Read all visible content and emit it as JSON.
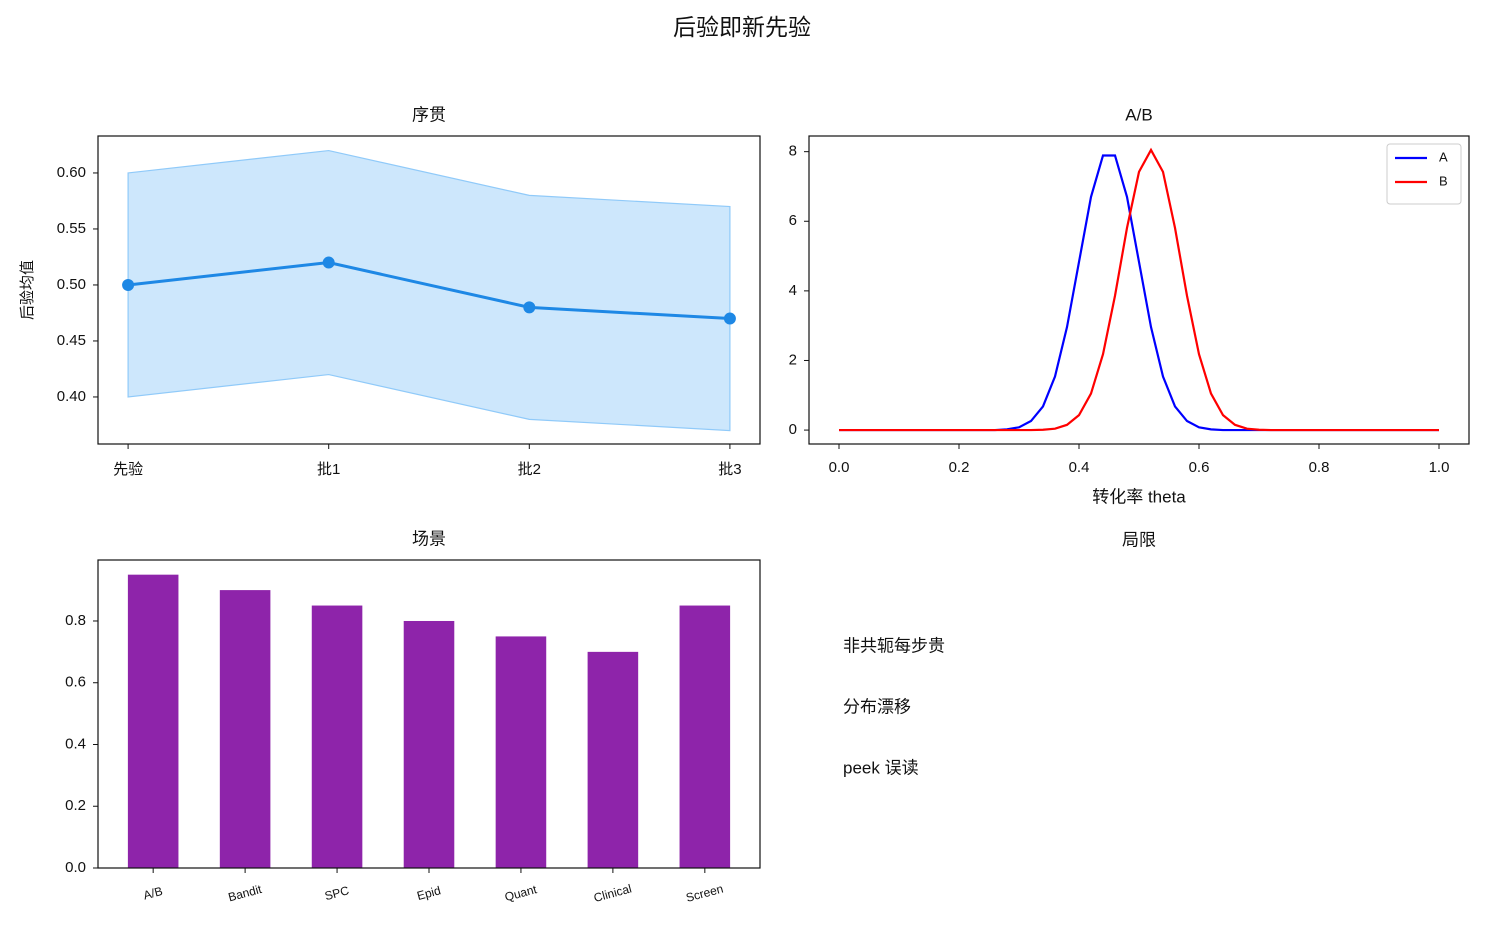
{
  "title": "后验即新先验",
  "chart_data": [
    {
      "type": "line",
      "title": "序贯",
      "ylabel": "后验均值",
      "categories": [
        "先验",
        "批1",
        "批2",
        "批3"
      ],
      "values": [
        0.5,
        0.52,
        0.48,
        0.47
      ],
      "lower": [
        0.4,
        0.42,
        0.38,
        0.37
      ],
      "upper": [
        0.6,
        0.62,
        0.58,
        0.57
      ],
      "color": "#1e88e5",
      "band_color": "#90caf9",
      "ylim": [
        0.358,
        0.633
      ],
      "yticks": [
        {
          "value": 0.4,
          "label": "0.40"
        },
        {
          "value": 0.45,
          "label": "0.45"
        },
        {
          "value": 0.5,
          "label": "0.50"
        },
        {
          "value": 0.55,
          "label": "0.55"
        },
        {
          "value": 0.6,
          "label": "0.60"
        }
      ]
    },
    {
      "type": "line",
      "title": "A/B",
      "xlabel": "转化率 theta",
      "x": [
        0,
        0.02,
        0.04,
        0.06,
        0.08,
        0.1,
        0.12,
        0.14,
        0.16,
        0.18,
        0.2,
        0.22,
        0.24,
        0.26,
        0.28,
        0.3,
        0.32,
        0.34,
        0.36,
        0.38,
        0.4,
        0.42,
        0.44,
        0.46,
        0.48,
        0.5,
        0.52,
        0.54,
        0.56,
        0.58,
        0.6,
        0.62,
        0.64,
        0.66,
        0.68,
        0.7,
        0.72,
        0.74,
        0.76,
        0.78,
        0.8,
        0.82,
        0.84,
        0.86,
        0.88,
        0.9,
        0.92,
        0.94,
        0.96,
        0.98,
        1
      ],
      "series": [
        {
          "name": "A",
          "color": "#0000ff",
          "values": [
            0,
            0,
            0,
            0,
            0,
            0,
            0,
            0,
            0,
            0,
            0,
            0,
            0,
            0,
            0.02,
            0.08,
            0.26,
            0.68,
            1.54,
            2.96,
            4.83,
            6.7,
            7.89,
            7.89,
            6.7,
            4.83,
            2.96,
            1.54,
            0.68,
            0.26,
            0.08,
            0.02,
            0,
            0,
            0,
            0,
            0,
            0,
            0,
            0,
            0,
            0,
            0,
            0,
            0,
            0,
            0,
            0,
            0,
            0,
            0
          ]
        },
        {
          "name": "B",
          "color": "#ff0000",
          "values": [
            0,
            0,
            0,
            0,
            0,
            0,
            0,
            0,
            0,
            0,
            0,
            0,
            0,
            0,
            0,
            0,
            0,
            0.01,
            0.04,
            0.15,
            0.43,
            1.05,
            2.18,
            3.86,
            5.81,
            7.42,
            8.05,
            7.42,
            5.81,
            3.86,
            2.18,
            1.05,
            0.43,
            0.15,
            0.04,
            0.01,
            0,
            0,
            0,
            0,
            0,
            0,
            0,
            0,
            0,
            0,
            0,
            0,
            0,
            0,
            0
          ]
        }
      ],
      "xlim": [
        -0.05,
        1.05
      ],
      "xticks": [
        {
          "value": 0,
          "label": "0.0"
        },
        0.2,
        0.4,
        0.6,
        0.8,
        {
          "value": 1,
          "label": "1.0"
        }
      ],
      "ylim": [
        -0.4,
        8.45
      ],
      "yticks": [
        0,
        2,
        4,
        6,
        8
      ],
      "legend": "upper right"
    },
    {
      "type": "bar",
      "title": "场景",
      "categories": [
        "A/B",
        "Bandit",
        "SPC",
        "Epid",
        "Quant",
        "Clinical",
        "Screen"
      ],
      "values": [
        0.95,
        0.9,
        0.85,
        0.8,
        0.75,
        0.7,
        0.85
      ],
      "color": "#8e24aa",
      "ylim": [
        0,
        0.9975
      ],
      "yticks": [
        {
          "value": 0,
          "label": "0.0"
        },
        0.2,
        0.4,
        0.6,
        0.8
      ]
    }
  ],
  "notes": {
    "title": "局限",
    "items": [
      "非共轭每步贵",
      "分布漂移",
      "peek 误读"
    ]
  }
}
